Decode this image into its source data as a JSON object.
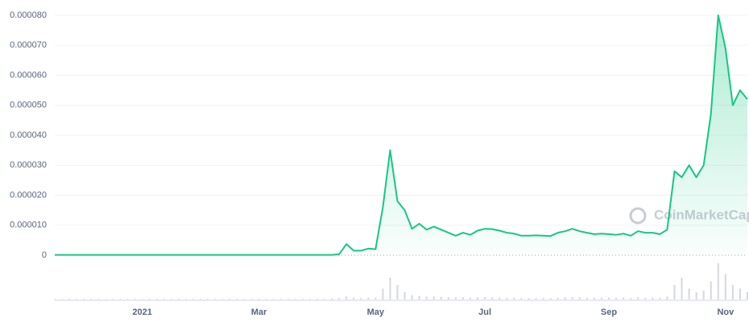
{
  "chart_data": {
    "type": "line",
    "watermark": "CoinMarketCap",
    "color": "#16c784",
    "volume_color": "#d5d8de",
    "grid": true,
    "ylim": [
      0,
      8e-05
    ],
    "yticks": [
      0,
      {
        "value": 1e-05,
        "label": "0.000010"
      },
      {
        "value": 2e-05,
        "label": "0.000020"
      },
      {
        "value": 3e-05,
        "label": "0.000030"
      },
      {
        "value": 4e-05,
        "label": "0.000040"
      },
      {
        "value": 5e-05,
        "label": "0.000050"
      },
      {
        "value": 6e-05,
        "label": "0.000060"
      },
      {
        "value": 7e-05,
        "label": "0.000070"
      },
      {
        "value": 8e-05,
        "label": "0.000080"
      }
    ],
    "categories": [
      null,
      null,
      null,
      null,
      null,
      null,
      null,
      null,
      null,
      null,
      null,
      null,
      "2021",
      null,
      null,
      null,
      null,
      null,
      null,
      null,
      null,
      null,
      null,
      null,
      null,
      null,
      null,
      null,
      "Mar",
      null,
      null,
      null,
      null,
      null,
      null,
      null,
      null,
      null,
      null,
      null,
      null,
      null,
      null,
      null,
      "May",
      null,
      null,
      null,
      null,
      null,
      null,
      null,
      null,
      null,
      null,
      null,
      null,
      null,
      null,
      "Jul",
      null,
      null,
      null,
      null,
      null,
      null,
      null,
      null,
      null,
      null,
      null,
      null,
      null,
      null,
      null,
      null,
      "Sep",
      null,
      null,
      null,
      null,
      null,
      null,
      null,
      null,
      null,
      null,
      null,
      null,
      null,
      null,
      null,
      "Nov",
      null,
      null,
      null
    ],
    "values": [
      1e-07,
      1e-07,
      1e-07,
      1e-07,
      1e-07,
      1e-07,
      1e-07,
      1e-07,
      1e-07,
      1e-07,
      1e-07,
      1e-07,
      1e-07,
      1e-07,
      1e-07,
      1e-07,
      1e-07,
      1e-07,
      1e-07,
      1e-07,
      1e-07,
      1e-07,
      1e-07,
      1e-07,
      1e-07,
      1e-07,
      1e-07,
      1e-07,
      1e-07,
      1e-07,
      1e-07,
      1e-07,
      1e-07,
      1e-07,
      1e-07,
      1e-07,
      1e-07,
      1e-07,
      1e-07,
      3e-07,
      3.7e-06,
      1.5e-06,
      1.5e-06,
      2.2e-06,
      2e-06,
      1.6e-05,
      3.5e-05,
      1.8e-05,
      1.5e-05,
      8.8e-06,
      1.05e-05,
      8.5e-06,
      9.5e-06,
      8.5e-06,
      7.5e-06,
      6.5e-06,
      7.5e-06,
      6.8e-06,
      8.2e-06,
      8.8e-06,
      8.7e-06,
      8.2e-06,
      7.5e-06,
      7.2e-06,
      6.5e-06,
      6.5e-06,
      6.6e-06,
      6.5e-06,
      6.4e-06,
      7.5e-06,
      8e-06,
      8.8e-06,
      8e-06,
      7.5e-06,
      7e-06,
      7.2e-06,
      7e-06,
      6.8e-06,
      7.2e-06,
      6.5e-06,
      8e-06,
      7.5e-06,
      7.5e-06,
      7e-06,
      8.5e-06,
      2.8e-05,
      2.6e-05,
      3e-05,
      2.6e-05,
      3e-05,
      4.7e-05,
      8e-05,
      6.9e-05,
      5e-05,
      5.5e-05,
      5.2e-05
    ],
    "volume": [
      2,
      2,
      2,
      2,
      2,
      2,
      2,
      2,
      2,
      2,
      2,
      2,
      2,
      2,
      2,
      2,
      2,
      2,
      2,
      2,
      2,
      2,
      2,
      2,
      2,
      2,
      2,
      2,
      2,
      2,
      2,
      2,
      2,
      2,
      2,
      2,
      2,
      2,
      3,
      4,
      8,
      5,
      4,
      5,
      5,
      30,
      60,
      40,
      20,
      12,
      10,
      8,
      8,
      7,
      6,
      6,
      6,
      5,
      6,
      7,
      6,
      5,
      5,
      5,
      4,
      4,
      4,
      4,
      4,
      5,
      6,
      7,
      6,
      5,
      5,
      5,
      5,
      4,
      5,
      4,
      6,
      5,
      5,
      5,
      8,
      40,
      60,
      30,
      20,
      25,
      50,
      100,
      70,
      40,
      30,
      20
    ]
  }
}
